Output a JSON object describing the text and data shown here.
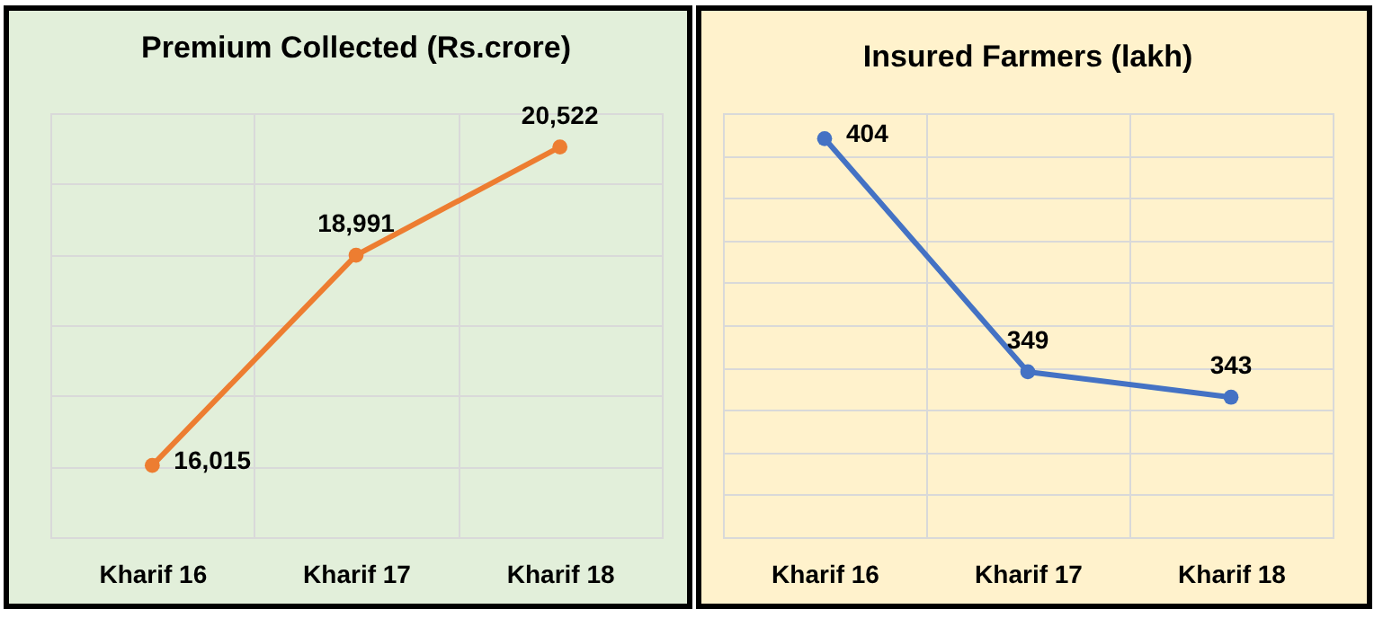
{
  "chart_data": [
    {
      "type": "line",
      "title": "Premium Collected (Rs.crore)",
      "categories": [
        "Kharif 16",
        "Kharif 17",
        "Kharif 18"
      ],
      "series": [
        {
          "color": "#ed7d31",
          "values": [
            16015,
            18991,
            20522
          ],
          "value_labels": [
            "16,015",
            "18,991",
            "20,522"
          ]
        }
      ],
      "ylim": [
        15000,
        21000
      ],
      "yticks": [
        {
          "value": 15000,
          "label": null
        },
        {
          "value": 16000,
          "label": null
        },
        {
          "value": 17000,
          "label": null
        },
        {
          "value": 18000,
          "label": null
        },
        {
          "value": 19000,
          "label": null
        },
        {
          "value": 20000,
          "label": null
        },
        {
          "value": 21000,
          "label": null
        }
      ],
      "tick_labels": "x",
      "grid": true,
      "marker": "circle"
    },
    {
      "type": "line",
      "title": "Insured Farmers (lakh)",
      "categories": [
        "Kharif 16",
        "Kharif 17",
        "Kharif 18"
      ],
      "series": [
        {
          "color": "#4472c4",
          "values": [
            404,
            349,
            343
          ],
          "value_labels": [
            "404",
            "349",
            "343"
          ]
        }
      ],
      "ylim": [
        310,
        410
      ],
      "yticks": [
        {
          "value": 310,
          "label": null
        },
        {
          "value": 320,
          "label": null
        },
        {
          "value": 330,
          "label": null
        },
        {
          "value": 340,
          "label": null
        },
        {
          "value": 350,
          "label": null
        },
        {
          "value": 360,
          "label": null
        },
        {
          "value": 370,
          "label": null
        },
        {
          "value": 380,
          "label": null
        },
        {
          "value": 390,
          "label": null
        },
        {
          "value": 400,
          "label": null
        },
        {
          "value": 410,
          "label": null
        }
      ],
      "tick_labels": "x",
      "grid": true,
      "marker": "circle"
    }
  ]
}
